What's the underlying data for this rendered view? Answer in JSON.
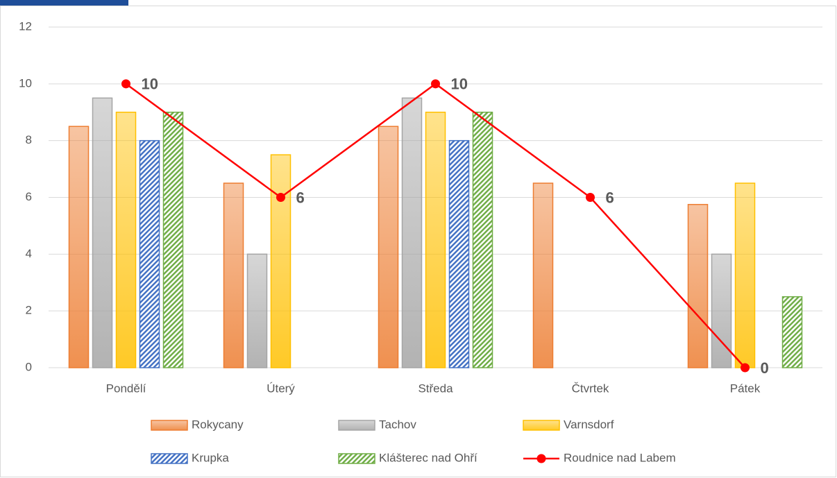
{
  "chart_data": {
    "type": "bar",
    "categories": [
      "Pondělí",
      "Úterý",
      "Středa",
      "Čtvrtek",
      "Pátek"
    ],
    "series": [
      {
        "name": "Rokycany",
        "color": "#ed7d31",
        "values": [
          8.5,
          6.5,
          8.5,
          6.5,
          5.75
        ]
      },
      {
        "name": "Tachov",
        "color": "#a5a5a5",
        "values": [
          9.5,
          4,
          9.5,
          null,
          4
        ]
      },
      {
        "name": "Varnsdorf",
        "color": "#ffc000",
        "values": [
          9,
          7.5,
          9,
          null,
          6.5
        ]
      },
      {
        "name": "Krupka",
        "color": "#4472c4",
        "pattern": "hatch",
        "values": [
          8,
          null,
          8,
          null,
          null
        ]
      },
      {
        "name": "Klášterec nad Ohří",
        "color": "#70ad47",
        "pattern": "hatch",
        "values": [
          9,
          null,
          9,
          null,
          2.5
        ]
      },
      {
        "name": "Roudnice nad Labem",
        "color": "#ff0000",
        "type": "line",
        "values": [
          10,
          6,
          10,
          6,
          0
        ]
      }
    ],
    "ylim": [
      0,
      12
    ],
    "yticks": [
      0,
      2,
      4,
      6,
      8,
      10,
      12
    ],
    "grid": true,
    "legend": "bottom"
  }
}
